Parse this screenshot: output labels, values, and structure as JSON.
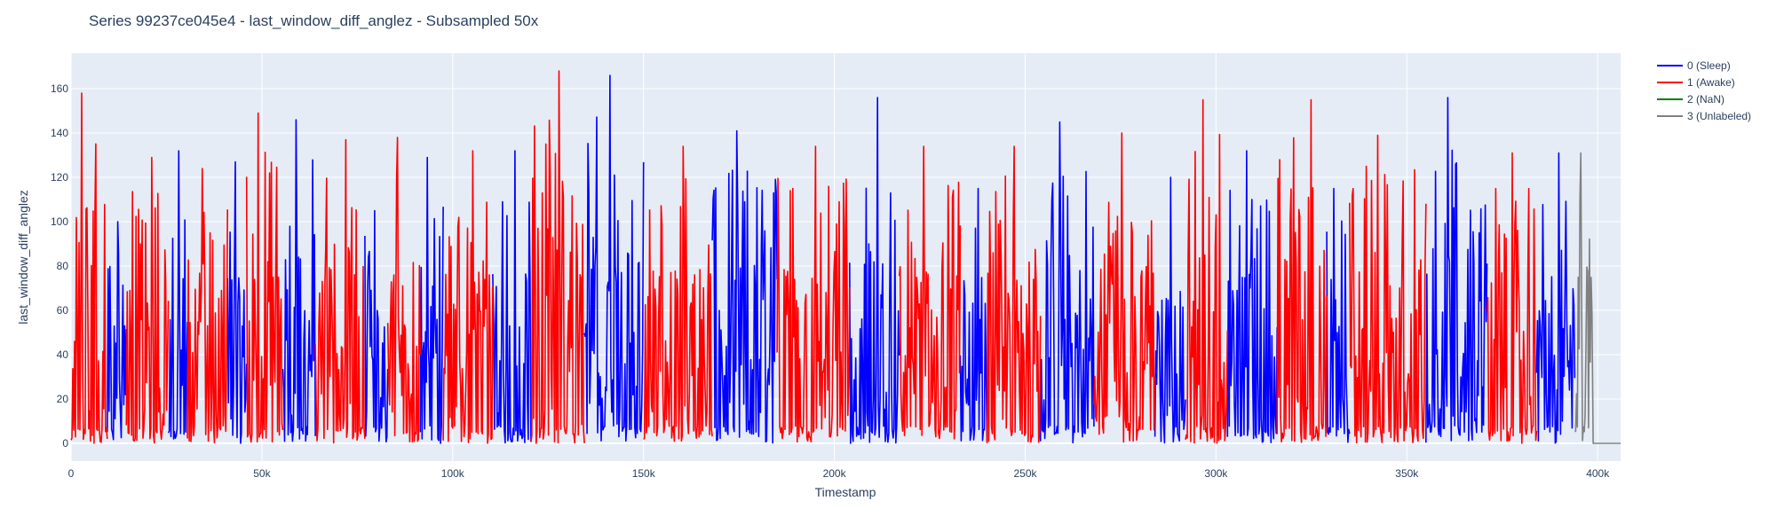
{
  "chart_data": {
    "type": "line",
    "title": "Series 99237ce045e4 - last_window_diff_anglez - Subsampled 50x",
    "xlabel": "Timestamp",
    "ylabel": "last_window_diff_anglez",
    "xlim": [
      0,
      406000
    ],
    "ylim": [
      -8,
      176
    ],
    "x_ticks": [
      0,
      50000,
      100000,
      150000,
      200000,
      250000,
      300000,
      350000,
      400000
    ],
    "x_tick_labels": [
      "0",
      "50k",
      "100k",
      "150k",
      "200k",
      "250k",
      "300k",
      "350k",
      "400k"
    ],
    "y_ticks": [
      0,
      20,
      40,
      60,
      80,
      100,
      120,
      140,
      160
    ],
    "y_tick_labels": [
      "0",
      "20",
      "40",
      "60",
      "80",
      "100",
      "120",
      "140",
      "160"
    ],
    "grid": true,
    "legend_position": "right",
    "plot_background": "#e5ecf6",
    "series": [
      {
        "name": "0 (Sleep)",
        "color": "#0000ff",
        "segments": [
          {
            "x_start": 9500,
            "x_end": 14500,
            "peak": 100
          },
          {
            "x_start": 25500,
            "x_end": 30500,
            "peak": 132
          },
          {
            "x_start": 41000,
            "x_end": 46000,
            "peak": 127
          },
          {
            "x_start": 55500,
            "x_end": 64000,
            "peak": 146
          },
          {
            "x_start": 77000,
            "x_end": 83000,
            "peak": 105
          },
          {
            "x_start": 91500,
            "x_end": 97500,
            "peak": 129
          },
          {
            "x_start": 110500,
            "x_end": 120500,
            "peak": 132
          },
          {
            "x_start": 134500,
            "x_end": 150000,
            "peak": 166
          },
          {
            "x_start": 168000,
            "x_end": 185000,
            "peak": 141
          },
          {
            "x_start": 204000,
            "x_end": 217000,
            "peak": 156
          },
          {
            "x_start": 233000,
            "x_end": 240000,
            "peak": 115
          },
          {
            "x_start": 254000,
            "x_end": 268000,
            "peak": 145
          },
          {
            "x_start": 284000,
            "x_end": 292000,
            "peak": 120
          },
          {
            "x_start": 303000,
            "x_end": 316000,
            "peak": 132
          },
          {
            "x_start": 329000,
            "x_end": 335000,
            "peak": 115
          },
          {
            "x_start": 355000,
            "x_end": 371000,
            "peak": 156
          },
          {
            "x_start": 384000,
            "x_end": 394000,
            "peak": 131
          }
        ]
      },
      {
        "name": "1 (Awake)",
        "color": "#ff0000",
        "segments": [
          {
            "x_start": 0,
            "x_end": 9500,
            "peak": 158
          },
          {
            "x_start": 14500,
            "x_end": 25500,
            "peak": 129
          },
          {
            "x_start": 30500,
            "x_end": 41000,
            "peak": 124
          },
          {
            "x_start": 46000,
            "x_end": 55500,
            "peak": 149
          },
          {
            "x_start": 64000,
            "x_end": 77000,
            "peak": 137
          },
          {
            "x_start": 83000,
            "x_end": 91500,
            "peak": 138
          },
          {
            "x_start": 97500,
            "x_end": 110500,
            "peak": 132
          },
          {
            "x_start": 120500,
            "x_end": 134500,
            "peak": 168
          },
          {
            "x_start": 150000,
            "x_end": 168000,
            "peak": 134
          },
          {
            "x_start": 185000,
            "x_end": 204000,
            "peak": 134
          },
          {
            "x_start": 217000,
            "x_end": 233000,
            "peak": 134
          },
          {
            "x_start": 240000,
            "x_end": 254000,
            "peak": 134
          },
          {
            "x_start": 268000,
            "x_end": 284000,
            "peak": 140
          },
          {
            "x_start": 292000,
            "x_end": 303000,
            "peak": 155
          },
          {
            "x_start": 316000,
            "x_end": 329000,
            "peak": 155
          },
          {
            "x_start": 335000,
            "x_end": 355000,
            "peak": 139
          },
          {
            "x_start": 371000,
            "x_end": 384000,
            "peak": 131
          }
        ]
      },
      {
        "name": "2 (NaN)",
        "color": "#008000",
        "segments": []
      },
      {
        "name": "3 (Unlabeled)",
        "color": "#808080",
        "segments": [
          {
            "x_start": 394000,
            "x_end": 398500,
            "peak": 131,
            "flat_after": 406000
          }
        ]
      }
    ]
  }
}
